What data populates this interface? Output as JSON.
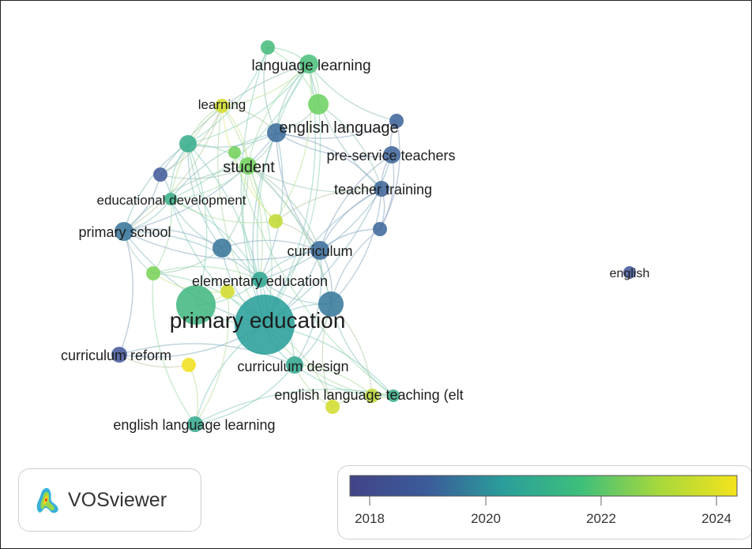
{
  "network": {
    "colors": {
      "c2018": "#4a4d9c",
      "c2020": "#2a9f9a",
      "c2022": "#5ed06a",
      "c2024": "#f0e020",
      "edge": "#8fb8d0"
    },
    "nodes": [
      {
        "id": "primary-education",
        "label": "primary education",
        "year": 2020.0
      },
      {
        "id": "elementary-education",
        "label": "elementary education",
        "year": 2020.3
      },
      {
        "id": "english-language",
        "label": "english language",
        "year": 2018.8
      },
      {
        "id": "language-learning",
        "label": "language learning",
        "year": 2021.3
      },
      {
        "id": "learning",
        "label": "learning",
        "year": 2023.6
      },
      {
        "id": "student",
        "label": "student",
        "year": 2022.3
      },
      {
        "id": "pre-service-teachers",
        "label": "pre-service teachers",
        "year": 2018.6
      },
      {
        "id": "teacher-training",
        "label": "teacher training",
        "year": 2018.6
      },
      {
        "id": "educational-development",
        "label": "educational development",
        "year": 2020.7
      },
      {
        "id": "primary-school",
        "label": "primary school",
        "year": 2019.0
      },
      {
        "id": "curriculum",
        "label": "curriculum",
        "year": 2018.8
      },
      {
        "id": "curriculum-reform",
        "label": "curriculum reform",
        "year": 2018.3
      },
      {
        "id": "curriculum-design",
        "label": "curriculum design",
        "year": 2020.4
      },
      {
        "id": "english-language-teaching-elt",
        "label": "english language teaching (elt",
        "year": 2020.7
      },
      {
        "id": "english-language-learning",
        "label": "english language learning",
        "year": 2020.5
      },
      {
        "id": "english",
        "label": "english",
        "year": 2018.3
      },
      {
        "id": "n1",
        "label": "",
        "year": 2022.2
      },
      {
        "id": "n2",
        "label": "",
        "year": 2021.2
      },
      {
        "id": "n3",
        "label": "",
        "year": 2018.6
      },
      {
        "id": "n4",
        "label": "",
        "year": 2020.6
      },
      {
        "id": "n5",
        "label": "",
        "year": 2018.4
      },
      {
        "id": "n6",
        "label": "",
        "year": 2023.4
      },
      {
        "id": "n7",
        "label": "",
        "year": 2018.7
      },
      {
        "id": "n8",
        "label": "",
        "year": 2019.0
      },
      {
        "id": "n9",
        "label": "",
        "year": 2022.4
      },
      {
        "id": "n10",
        "label": "",
        "year": 2019.1
      },
      {
        "id": "n11",
        "label": "",
        "year": 2024.3
      },
      {
        "id": "n12",
        "label": "",
        "year": 2023.3
      },
      {
        "id": "n13",
        "label": "",
        "year": 2023.6
      },
      {
        "id": "n14",
        "label": "",
        "year": 2022.3
      },
      {
        "id": "n15",
        "label": "",
        "year": 2023.6
      },
      {
        "id": "n16",
        "label": "",
        "year": 2021.0
      }
    ],
    "edges": [
      [
        "primary-education",
        "elementary-education"
      ],
      [
        "primary-education",
        "english-language"
      ],
      [
        "primary-education",
        "language-learning"
      ],
      [
        "primary-education",
        "learning"
      ],
      [
        "primary-education",
        "student"
      ],
      [
        "primary-education",
        "teacher-training"
      ],
      [
        "primary-education",
        "pre-service-teachers"
      ],
      [
        "primary-education",
        "primary-school"
      ],
      [
        "primary-education",
        "curriculum"
      ],
      [
        "primary-education",
        "curriculum-reform"
      ],
      [
        "primary-education",
        "curriculum-design"
      ],
      [
        "primary-education",
        "english-language-teaching-elt"
      ],
      [
        "primary-education",
        "english-language-learning"
      ],
      [
        "primary-education",
        "educational-development"
      ],
      [
        "primary-education",
        "n1"
      ],
      [
        "primary-education",
        "n2"
      ],
      [
        "primary-education",
        "n4"
      ],
      [
        "primary-education",
        "n8"
      ],
      [
        "primary-education",
        "n9"
      ],
      [
        "primary-education",
        "n10"
      ],
      [
        "primary-education",
        "n12"
      ],
      [
        "primary-education",
        "n13"
      ],
      [
        "primary-education",
        "n15"
      ],
      [
        "primary-education",
        "n16"
      ],
      [
        "elementary-education",
        "english-language"
      ],
      [
        "elementary-education",
        "language-learning"
      ],
      [
        "elementary-education",
        "learning"
      ],
      [
        "elementary-education",
        "student"
      ],
      [
        "elementary-education",
        "primary-school"
      ],
      [
        "elementary-education",
        "curriculum"
      ],
      [
        "elementary-education",
        "teacher-training"
      ],
      [
        "elementary-education",
        "curriculum-design"
      ],
      [
        "elementary-education",
        "educational-development"
      ],
      [
        "elementary-education",
        "n4"
      ],
      [
        "elementary-education",
        "n10"
      ],
      [
        "elementary-education",
        "n16"
      ],
      [
        "elementary-education",
        "n9"
      ],
      [
        "english-language",
        "language-learning"
      ],
      [
        "english-language",
        "learning"
      ],
      [
        "english-language",
        "student"
      ],
      [
        "english-language",
        "pre-service-teachers"
      ],
      [
        "english-language",
        "teacher-training"
      ],
      [
        "english-language",
        "n1"
      ],
      [
        "english-language",
        "n2"
      ],
      [
        "english-language",
        "n3"
      ],
      [
        "english-language",
        "n4"
      ],
      [
        "english-language",
        "educational-development"
      ],
      [
        "english-language",
        "primary-school"
      ],
      [
        "english-language",
        "curriculum"
      ],
      [
        "language-learning",
        "learning"
      ],
      [
        "language-learning",
        "student"
      ],
      [
        "language-learning",
        "n1"
      ],
      [
        "language-learning",
        "n2"
      ],
      [
        "language-learning",
        "n4"
      ],
      [
        "language-learning",
        "n5"
      ],
      [
        "language-learning",
        "n6"
      ],
      [
        "language-learning",
        "teacher-training"
      ],
      [
        "language-learning",
        "educational-development"
      ],
      [
        "language-learning",
        "n3"
      ],
      [
        "learning",
        "student"
      ],
      [
        "learning",
        "n4"
      ],
      [
        "learning",
        "n5"
      ],
      [
        "learning",
        "educational-development"
      ],
      [
        "learning",
        "primary-school"
      ],
      [
        "learning",
        "n6"
      ],
      [
        "student",
        "educational-development"
      ],
      [
        "student",
        "primary-school"
      ],
      [
        "student",
        "curriculum"
      ],
      [
        "student",
        "n4"
      ],
      [
        "student",
        "n5"
      ],
      [
        "student",
        "n6"
      ],
      [
        "student",
        "n8"
      ],
      [
        "student",
        "teacher-training"
      ],
      [
        "student",
        "n10"
      ],
      [
        "pre-service-teachers",
        "teacher-training"
      ],
      [
        "pre-service-teachers",
        "n3"
      ],
      [
        "pre-service-teachers",
        "curriculum"
      ],
      [
        "pre-service-teachers",
        "n7"
      ],
      [
        "teacher-training",
        "curriculum"
      ],
      [
        "teacher-training",
        "n7"
      ],
      [
        "teacher-training",
        "n6"
      ],
      [
        "teacher-training",
        "n10"
      ],
      [
        "teacher-training",
        "n1"
      ],
      [
        "educational-development",
        "primary-school"
      ],
      [
        "educational-development",
        "n5"
      ],
      [
        "educational-development",
        "n4"
      ],
      [
        "educational-development",
        "n8"
      ],
      [
        "educational-development",
        "n9"
      ],
      [
        "educational-development",
        "n6"
      ],
      [
        "primary-school",
        "n8"
      ],
      [
        "primary-school",
        "n9"
      ],
      [
        "primary-school",
        "curriculum-reform"
      ],
      [
        "primary-school",
        "n5"
      ],
      [
        "primary-school",
        "n4"
      ],
      [
        "primary-school",
        "curriculum"
      ],
      [
        "curriculum",
        "n10"
      ],
      [
        "curriculum",
        "n6"
      ],
      [
        "curriculum",
        "n7"
      ],
      [
        "curriculum",
        "n8"
      ],
      [
        "curriculum",
        "curriculum-design"
      ],
      [
        "curriculum-reform",
        "n11"
      ],
      [
        "curriculum-reform",
        "curriculum-design"
      ],
      [
        "curriculum-design",
        "english-language-teaching-elt"
      ],
      [
        "curriculum-design",
        "english-language-learning"
      ],
      [
        "curriculum-design",
        "n10"
      ],
      [
        "curriculum-design",
        "n12"
      ],
      [
        "curriculum-design",
        "n13"
      ],
      [
        "english-language-teaching-elt",
        "n12"
      ],
      [
        "english-language-teaching-elt",
        "n13"
      ],
      [
        "english-language-teaching-elt",
        "n10"
      ],
      [
        "english-language-teaching-elt",
        "english-language-learning"
      ],
      [
        "english-language-teaching-elt",
        "n14"
      ],
      [
        "english-language-learning",
        "n11"
      ],
      [
        "english-language-learning",
        "n9"
      ],
      [
        "english-language-learning",
        "n15"
      ],
      [
        "n10",
        "n12"
      ],
      [
        "n10",
        "n13"
      ],
      [
        "n10",
        "n7"
      ],
      [
        "n10",
        "n14"
      ],
      [
        "n8",
        "n9"
      ],
      [
        "n9",
        "n15"
      ],
      [
        "n15",
        "n16"
      ],
      [
        "n16",
        "n4"
      ],
      [
        "n8",
        "n4"
      ],
      [
        "n5",
        "n4"
      ],
      [
        "n2",
        "n4"
      ],
      [
        "n1",
        "n2"
      ],
      [
        "n3",
        "n7"
      ]
    ]
  },
  "legend": {
    "ticks": [
      "2018",
      "2020",
      "2022",
      "2024"
    ]
  },
  "logo": {
    "text": "VOSviewer"
  }
}
